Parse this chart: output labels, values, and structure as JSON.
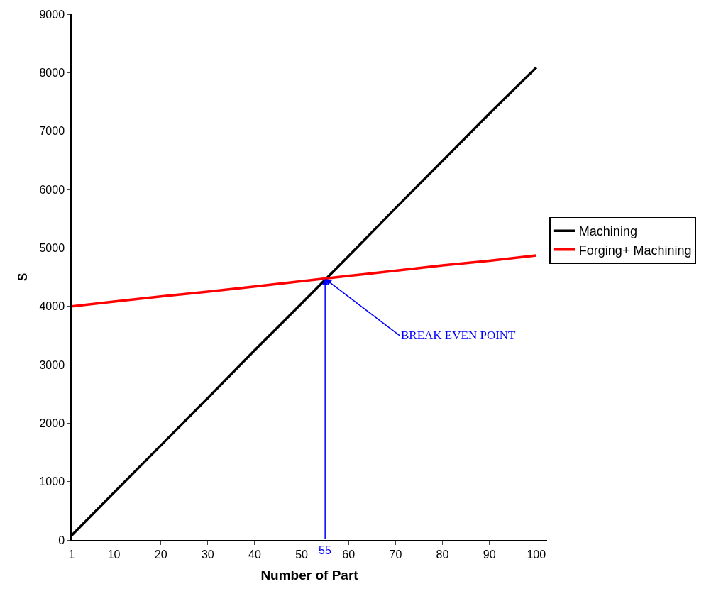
{
  "chart_data": {
    "type": "line",
    "xlabel": "Number of Part",
    "ylabel": "$",
    "xlim": [
      1,
      102.3
    ],
    "xticks": [
      1,
      10,
      20,
      30,
      40,
      50,
      60,
      70,
      80,
      90,
      100
    ],
    "ylim": [
      0,
      9000
    ],
    "yticks": [
      0,
      1000,
      2000,
      3000,
      4000,
      5000,
      6000,
      7000,
      8000,
      9000
    ],
    "series": [
      {
        "name": "Machining",
        "color": "#000000",
        "x": [
          1,
          10,
          20,
          30,
          40,
          50,
          60,
          70,
          80,
          90,
          100
        ],
        "values": [
          80,
          810,
          1620,
          2430,
          3250,
          4050,
          4860,
          5680,
          6490,
          7300,
          8090
        ]
      },
      {
        "name": "Forging+ Machining",
        "color": "#ff0000",
        "x": [
          1,
          10,
          20,
          30,
          40,
          50,
          60,
          70,
          80,
          90,
          100
        ],
        "values": [
          4000,
          4080,
          4170,
          4250,
          4340,
          4430,
          4520,
          4610,
          4700,
          4780,
          4870
        ]
      }
    ],
    "ref_lines": [
      {
        "axis": "x",
        "value": 55,
        "label": "55",
        "color": "#0000ff"
      }
    ],
    "annotations": [
      {
        "text": "BREAK EVEN POINT",
        "x": 55,
        "y": 4470
      }
    ],
    "grid": false,
    "legend": "right",
    "marker": "none",
    "line_style": "solid"
  }
}
